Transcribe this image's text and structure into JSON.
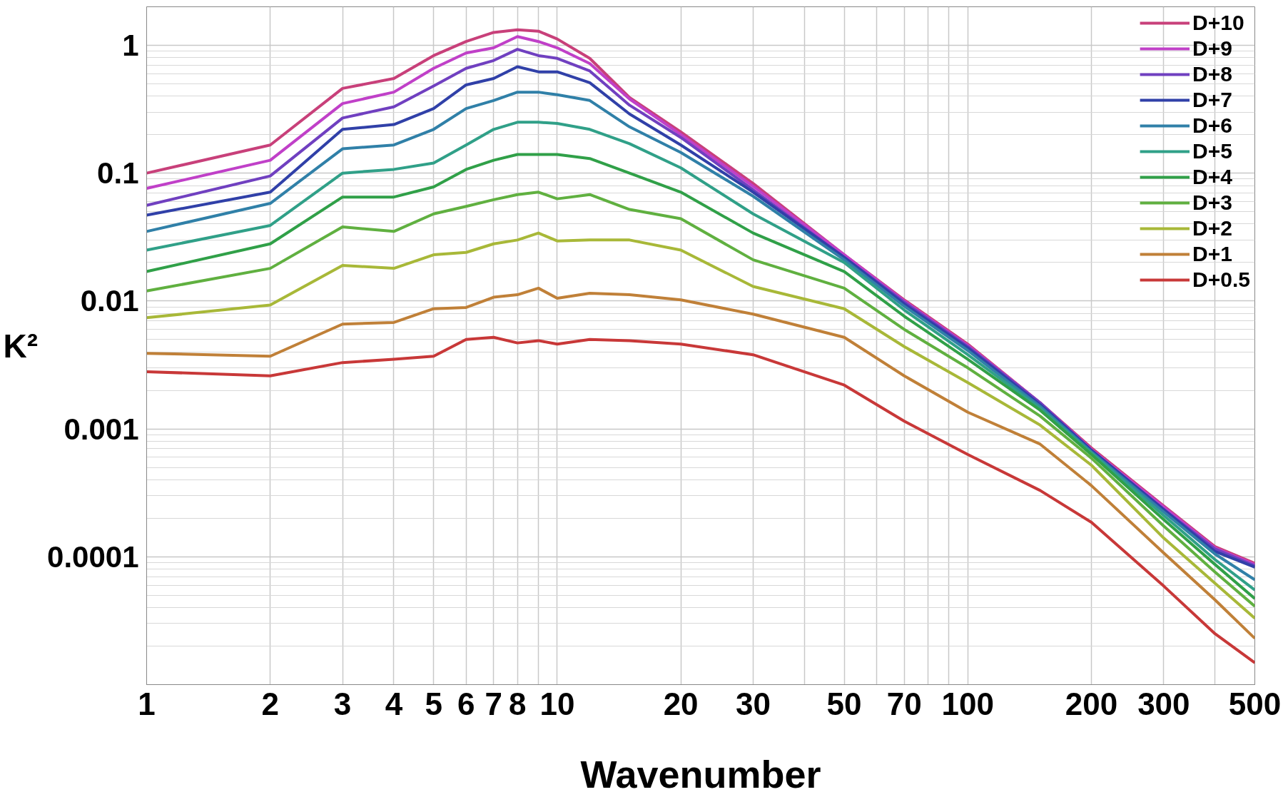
{
  "chart_data": {
    "type": "line",
    "xlabel": "Wavenumber",
    "ylabel": "K²",
    "log": "xy",
    "grid": true,
    "legend": "top right",
    "line_style": "solid",
    "marker": "none",
    "x": [
      1,
      2,
      3,
      4,
      5,
      6,
      7,
      8,
      9,
      10,
      12,
      15,
      20,
      30,
      50,
      70,
      100,
      150,
      200,
      300,
      400,
      500
    ],
    "xlim": [
      1,
      500
    ],
    "ylim": [
      1e-05,
      2
    ],
    "xticks": [
      1,
      2,
      3,
      4,
      5,
      6,
      7,
      8,
      {
        "value": 9,
        "label": null
      },
      10,
      20,
      30,
      {
        "value": 40,
        "label": null
      },
      50,
      {
        "value": 60,
        "label": null
      },
      70,
      {
        "value": 80,
        "label": null
      },
      {
        "value": 90,
        "label": null
      },
      100,
      200,
      300,
      {
        "value": 400,
        "label": null
      },
      500
    ],
    "yticks": [
      {
        "value": 0.0001,
        "label": "0.0001"
      },
      {
        "value": 0.001,
        "label": "0.001"
      },
      {
        "value": 0.01,
        "label": "0.01"
      },
      {
        "value": 0.1,
        "label": "0.1"
      },
      1
    ],
    "series": [
      {
        "name": "D+10",
        "color": "#c8407a",
        "values": [
          0.1,
          0.166,
          0.46,
          0.55,
          0.83,
          1.07,
          1.26,
          1.32,
          1.29,
          1.12,
          0.79,
          0.39,
          0.21,
          0.083,
          0.023,
          0.0102,
          0.0046,
          0.0016,
          0.00071,
          0.00025,
          0.00012,
          8.9e-05
        ]
      },
      {
        "name": "D+9",
        "color": "#c040c8",
        "values": [
          0.076,
          0.126,
          0.35,
          0.43,
          0.66,
          0.87,
          0.955,
          1.17,
          1.07,
          0.955,
          0.72,
          0.38,
          0.2,
          0.079,
          0.023,
          0.01,
          0.0045,
          0.0016,
          0.00069,
          0.000245,
          0.000117,
          8.7e-05
        ]
      },
      {
        "name": "D+8",
        "color": "#7040c0",
        "values": [
          0.056,
          0.095,
          0.27,
          0.33,
          0.48,
          0.66,
          0.76,
          0.93,
          0.83,
          0.79,
          0.63,
          0.34,
          0.19,
          0.074,
          0.022,
          0.0098,
          0.0044,
          0.0016,
          0.00068,
          0.000234,
          0.000115,
          8.5e-05
        ]
      },
      {
        "name": "D+7",
        "color": "#3040a8",
        "values": [
          0.047,
          0.071,
          0.22,
          0.24,
          0.32,
          0.49,
          0.55,
          0.68,
          0.62,
          0.62,
          0.51,
          0.29,
          0.166,
          0.071,
          0.022,
          0.0095,
          0.0043,
          0.00155,
          0.00068,
          0.000234,
          0.00011,
          8.3e-05
        ]
      },
      {
        "name": "D+6",
        "color": "#3080a8",
        "values": [
          0.035,
          0.058,
          0.155,
          0.166,
          0.22,
          0.32,
          0.37,
          0.43,
          0.43,
          0.41,
          0.37,
          0.23,
          0.145,
          0.066,
          0.021,
          0.0091,
          0.0041,
          0.0015,
          0.00066,
          0.000224,
          0.000105,
          6.6e-05
        ]
      },
      {
        "name": "D+5",
        "color": "#30a088",
        "values": [
          0.025,
          0.039,
          0.1,
          0.107,
          0.12,
          0.166,
          0.22,
          0.25,
          0.25,
          0.245,
          0.22,
          0.17,
          0.11,
          0.048,
          0.02,
          0.0085,
          0.0038,
          0.00145,
          0.00065,
          0.00021,
          9.5e-05,
          5.5e-05
        ]
      },
      {
        "name": "D+4",
        "color": "#30a048",
        "values": [
          0.017,
          0.028,
          0.065,
          0.065,
          0.078,
          0.107,
          0.126,
          0.14,
          0.14,
          0.14,
          0.13,
          0.1,
          0.071,
          0.034,
          0.017,
          0.0076,
          0.0035,
          0.0014,
          0.00063,
          0.000195,
          8.7e-05,
          4.7e-05
        ]
      },
      {
        "name": "D+3",
        "color": "#60b040",
        "values": [
          0.012,
          0.018,
          0.038,
          0.035,
          0.048,
          0.055,
          0.062,
          0.068,
          0.071,
          0.063,
          0.068,
          0.052,
          0.044,
          0.021,
          0.0126,
          0.006,
          0.003,
          0.00126,
          0.00059,
          0.000174,
          7.6e-05,
          4.1e-05
        ]
      },
      {
        "name": "D+2",
        "color": "#a8b838",
        "values": [
          0.0074,
          0.0093,
          0.019,
          0.018,
          0.023,
          0.024,
          0.028,
          0.03,
          0.034,
          0.0295,
          0.03,
          0.03,
          0.025,
          0.013,
          0.0087,
          0.0044,
          0.0023,
          0.00107,
          0.00052,
          0.00014,
          6.2e-05,
          3.3e-05
        ]
      },
      {
        "name": "D+1",
        "color": "#c08038",
        "values": [
          0.0039,
          0.0037,
          0.0066,
          0.0068,
          0.0087,
          0.0089,
          0.0107,
          0.0112,
          0.0126,
          0.0105,
          0.0115,
          0.0112,
          0.0102,
          0.0079,
          0.0052,
          0.0026,
          0.00135,
          0.00076,
          0.00036,
          0.000107,
          4.6e-05,
          2.3e-05
        ]
      },
      {
        "name": "D+0.5",
        "color": "#c83838",
        "values": [
          0.0028,
          0.0026,
          0.0033,
          0.0035,
          0.0037,
          0.005,
          0.0052,
          0.0047,
          0.0049,
          0.0046,
          0.005,
          0.0049,
          0.0046,
          0.0038,
          0.0022,
          0.00115,
          0.00063,
          0.00033,
          0.000186,
          5.9e-05,
          2.5e-05,
          1.48e-05
        ]
      }
    ]
  }
}
